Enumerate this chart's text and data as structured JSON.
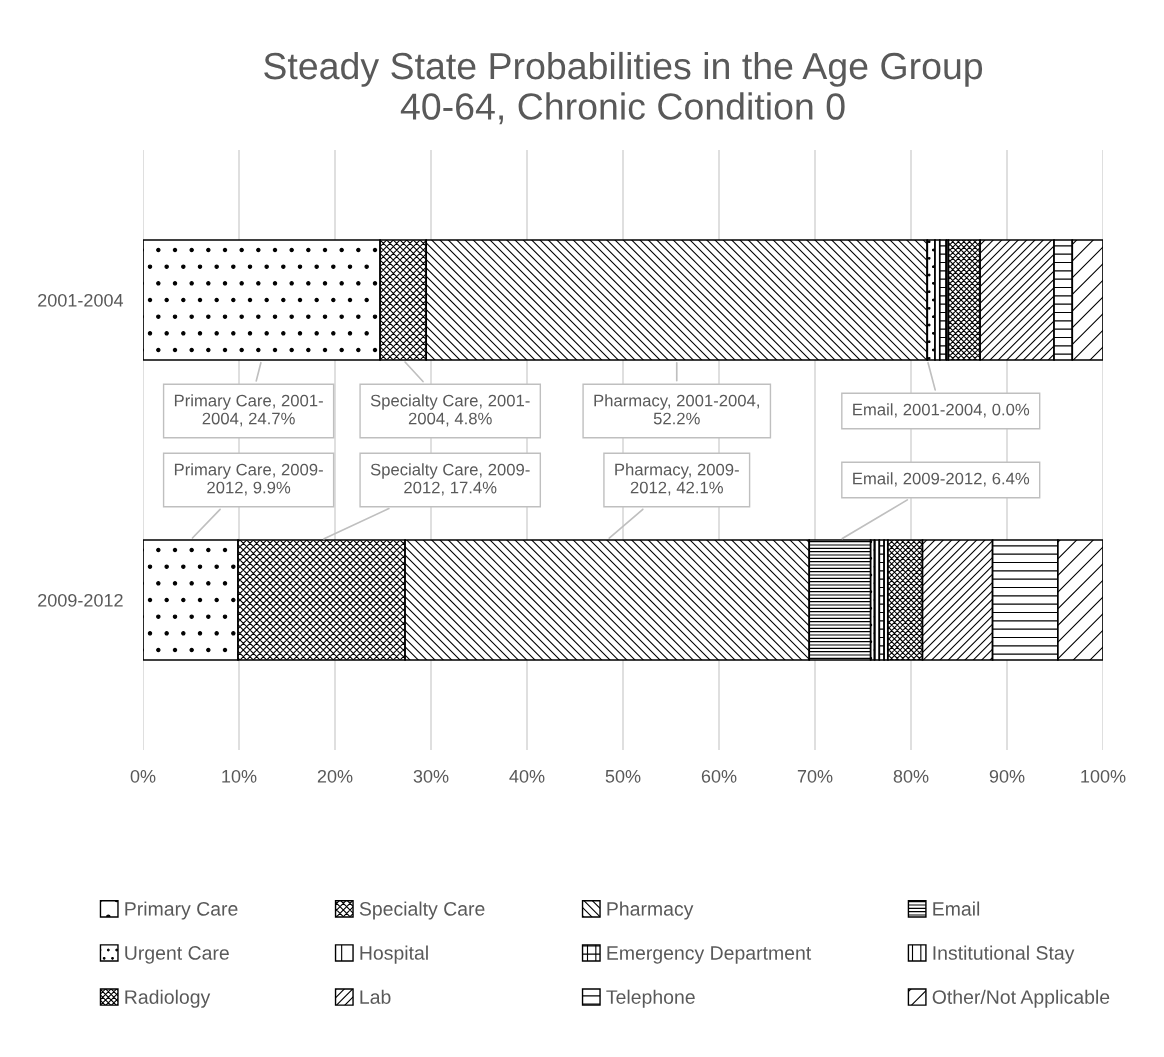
{
  "chart_data": {
    "type": "bar",
    "orientation": "horizontal",
    "stacked": true,
    "title": "Steady State Probabilities in the Age Group\n40-64, Chronic Condition 0",
    "categories": [
      "2001-2004",
      "2009-2012"
    ],
    "series": [
      {
        "name": "Primary Care",
        "color": "#000000",
        "values": [
          24.7,
          9.9
        ],
        "value_labels": [
          "Primary Care, 2001-\n2004, 24.7%",
          "Primary Care, 2009-\n2012, 9.9%"
        ]
      },
      {
        "name": "Specialty Care",
        "color": "#000000",
        "values": [
          4.8,
          17.4
        ],
        "value_labels": [
          "Specialty Care, 2001-\n2004, 4.8%",
          "Specialty Care, 2009-\n2012, 17.4%"
        ]
      },
      {
        "name": "Pharmacy",
        "color": "#000000",
        "values": [
          52.2,
          42.1
        ],
        "value_labels": [
          "Pharmacy, 2001-2004,\n52.2%",
          "Pharmacy, 2009-\n2012, 42.1%"
        ]
      },
      {
        "name": "Email",
        "color": "#000000",
        "values": [
          0.0,
          6.4
        ],
        "value_labels": [
          "Email, 2001-2004, 0.0%",
          "Email, 2009-2012, 6.4%"
        ]
      },
      {
        "name": "Urgent Care",
        "color": "#000000",
        "values": [
          0.8,
          0.4
        ]
      },
      {
        "name": "Hospital",
        "color": "#000000",
        "values": [
          0.5,
          0.5
        ]
      },
      {
        "name": "Emergency Department",
        "color": "#000000",
        "values": [
          0.7,
          0.5
        ]
      },
      {
        "name": "Institutional Stay",
        "color": "#000000",
        "values": [
          0.2,
          0.4
        ]
      },
      {
        "name": "Radiology",
        "color": "#000000",
        "values": [
          3.3,
          3.6
        ]
      },
      {
        "name": "Lab",
        "color": "#000000",
        "values": [
          7.7,
          7.3
        ]
      },
      {
        "name": "Telephone",
        "color": "#000000",
        "values": [
          1.9,
          6.8
        ]
      },
      {
        "name": "Other/Not Applicable",
        "color": "#000000",
        "values": [
          3.2,
          4.7
        ]
      }
    ],
    "xlim": [
      0,
      100
    ],
    "xticks": [
      {
        "value": 0,
        "label": "0%"
      },
      {
        "value": 10,
        "label": "10%"
      },
      {
        "value": 20,
        "label": "20%"
      },
      {
        "value": 30,
        "label": "30%"
      },
      {
        "value": 40,
        "label": "40%"
      },
      {
        "value": 50,
        "label": "50%"
      },
      {
        "value": 60,
        "label": "60%"
      },
      {
        "value": 70,
        "label": "70%"
      },
      {
        "value": 80,
        "label": "80%"
      },
      {
        "value": 90,
        "label": "90%"
      },
      {
        "value": 100,
        "label": "100%"
      }
    ],
    "grid": "x",
    "legend": "bottom"
  }
}
